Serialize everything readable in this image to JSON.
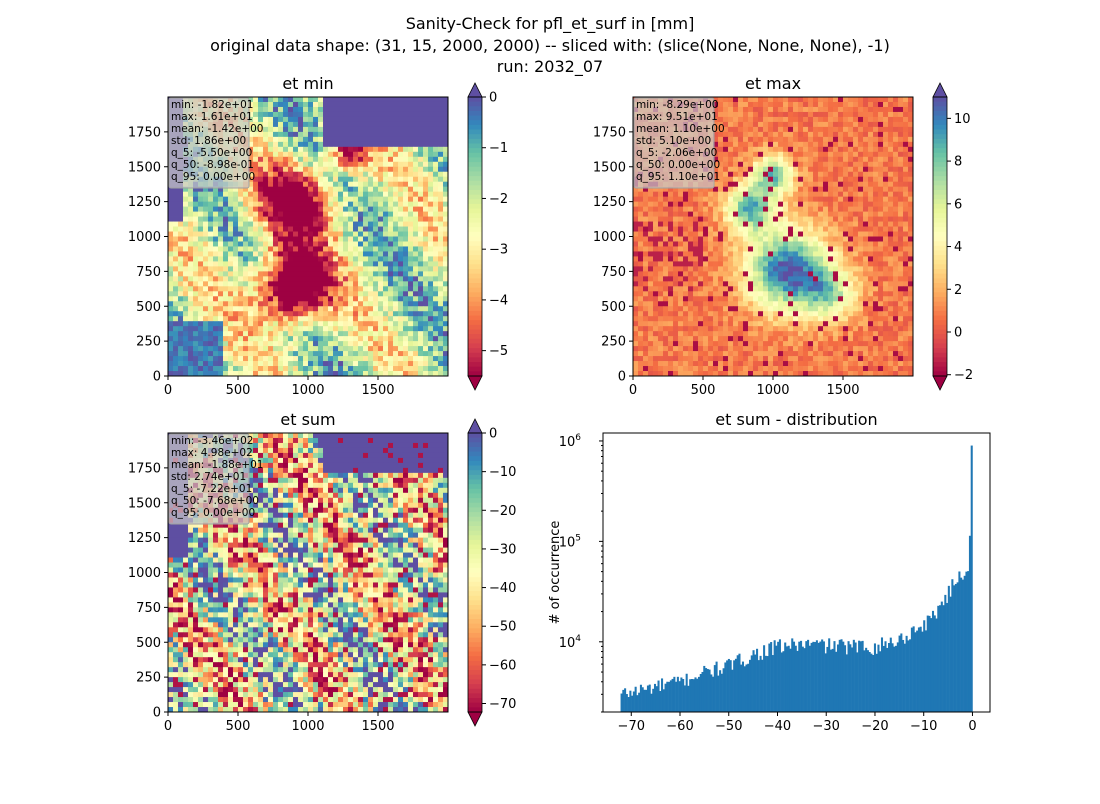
{
  "figure": {
    "title_lines": [
      "Sanity-Check for pfl_et_surf in [mm]",
      "original data shape: (31, 15, 2000, 2000) -- sliced with: (slice(None, None, None), -1)",
      "run: 2032_07"
    ]
  },
  "colormap": {
    "name": "Spectral",
    "stops": [
      "#9e0142",
      "#d53e4f",
      "#f46d43",
      "#fdae61",
      "#fee08b",
      "#ffffbf",
      "#e6f598",
      "#abdda4",
      "#66c2a5",
      "#3288bd",
      "#5e4fa2"
    ]
  },
  "chart_data": [
    {
      "type": "heatmap",
      "title": "et min",
      "xlim": [
        0,
        2000
      ],
      "ylim": [
        0,
        2000
      ],
      "xticks": [
        "0",
        "500",
        "1000",
        "1500"
      ],
      "yticks": [
        "0",
        "250",
        "500",
        "750",
        "1000",
        "1250",
        "1500",
        "1750"
      ],
      "colorbar": {
        "range": [
          -5.5,
          0
        ],
        "ticks": [
          "0",
          "−1",
          "−2",
          "−3",
          "−4",
          "−5"
        ],
        "extend": "both"
      },
      "stats": [
        "min: -1.82e+01",
        "max: 1.61e+01",
        "mean: -1.42e+00",
        "std: 1.86e+00",
        "q_5: -5.50e+00",
        "q_50: -8.98e-01",
        "q_95: 0.00e+00"
      ]
    },
    {
      "type": "heatmap",
      "title": "et max",
      "xlim": [
        0,
        2000
      ],
      "ylim": [
        0,
        2000
      ],
      "xticks": [
        "0",
        "500",
        "1000",
        "1500"
      ],
      "yticks": [
        "0",
        "250",
        "500",
        "750",
        "1000",
        "1250",
        "1500",
        "1750"
      ],
      "colorbar": {
        "range": [
          -2.06,
          11.0
        ],
        "ticks": [
          "10",
          "8",
          "6",
          "4",
          "2",
          "0",
          "−2"
        ],
        "extend": "both"
      },
      "stats": [
        "min: -8.29e+00",
        "max: 9.51e+01",
        "mean: 1.10e+00",
        "std: 5.10e+00",
        "q_5: -2.06e+00",
        "q_50: 0.00e+00",
        "q_95: 1.10e+01"
      ]
    },
    {
      "type": "heatmap",
      "title": "et sum",
      "xlim": [
        0,
        2000
      ],
      "ylim": [
        0,
        2000
      ],
      "xticks": [
        "0",
        "500",
        "1000",
        "1500"
      ],
      "yticks": [
        "0",
        "250",
        "500",
        "750",
        "1000",
        "1250",
        "1500",
        "1750"
      ],
      "colorbar": {
        "range": [
          -72.2,
          0
        ],
        "ticks": [
          "0",
          "−10",
          "−20",
          "−30",
          "−40",
          "−50",
          "−60",
          "−70"
        ],
        "extend": "both"
      },
      "stats": [
        "min: -3.46e+02",
        "max: 4.98e+02",
        "mean: -1.88e+01",
        "std: 2.74e+01",
        "q_5: -7.22e+01",
        "q_50: -7.68e+00",
        "q_95: 0.00e+00"
      ]
    },
    {
      "type": "bar",
      "title": "et sum - distribution",
      "xlabel": "",
      "ylabel": "# of occurrence",
      "xlim": [
        -75.8,
        3.6
      ],
      "ylim": [
        2000,
        1200000
      ],
      "yscale": "log",
      "xticks": [
        "−70",
        "−60",
        "−50",
        "−40",
        "−30",
        "−20",
        "−10",
        "0"
      ],
      "yticks": [
        "10^4",
        "10^5",
        "10^6"
      ],
      "color": "#1f77b4",
      "bins": [
        -72.2,
        0
      ],
      "bin_count": 200,
      "anchors": [
        {
          "x": -72.2,
          "y": 3000
        },
        {
          "x": -65,
          "y": 3600
        },
        {
          "x": -60,
          "y": 4000
        },
        {
          "x": -55,
          "y": 5000
        },
        {
          "x": -50,
          "y": 5800
        },
        {
          "x": -45,
          "y": 7500
        },
        {
          "x": -40,
          "y": 9000
        },
        {
          "x": -35,
          "y": 9500
        },
        {
          "x": -30,
          "y": 9300
        },
        {
          "x": -25,
          "y": 9000
        },
        {
          "x": -20,
          "y": 9000
        },
        {
          "x": -15,
          "y": 10500
        },
        {
          "x": -12,
          "y": 13000
        },
        {
          "x": -9,
          "y": 16000
        },
        {
          "x": -7,
          "y": 22000
        },
        {
          "x": -5,
          "y": 30000
        },
        {
          "x": -3,
          "y": 45000
        },
        {
          "x": -1.5,
          "y": 50000
        },
        {
          "x": -0.7,
          "y": 60000
        },
        {
          "x": 0,
          "y": 900000
        }
      ]
    }
  ]
}
